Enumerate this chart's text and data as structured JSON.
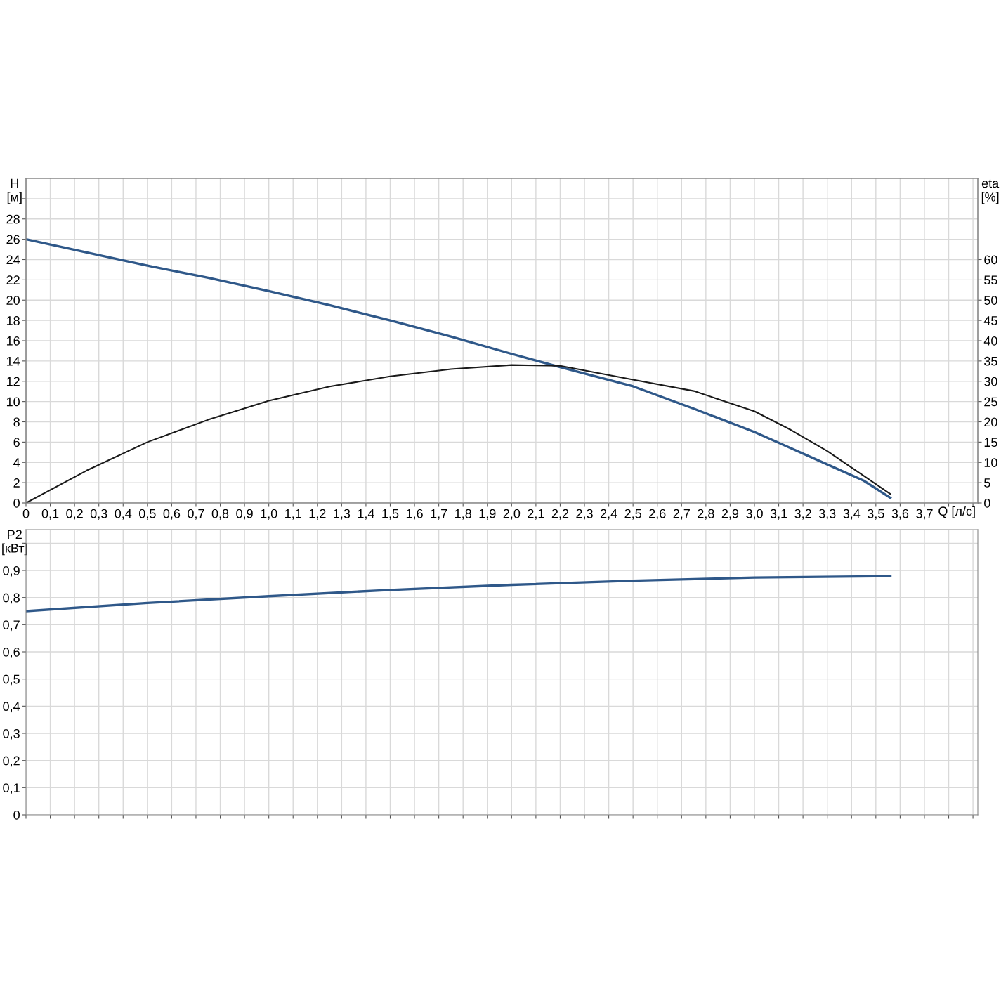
{
  "chart_data": [
    {
      "type": "line",
      "ylabel": "H\n[м]",
      "y2label": "eta\n[%]",
      "xlabel": "Q [л/с]",
      "x": [
        0,
        0.25,
        0.5,
        0.75,
        1.0,
        1.25,
        1.5,
        1.75,
        2.0,
        2.2,
        2.5,
        2.75,
        3.0,
        3.15,
        3.3,
        3.45,
        3.56
      ],
      "series": [
        {
          "color": "#2f5889",
          "values": [
            26,
            24.7,
            23.4,
            22.2,
            20.9,
            19.5,
            18.0,
            16.4,
            14.7,
            13.4,
            11.5,
            9.3,
            7.0,
            5.4,
            3.8,
            2.2,
            0.5
          ]
        },
        {
          "color": "#1a1a1a",
          "axis": "y2",
          "values": [
            0,
            8.0,
            15.0,
            20.5,
            25.2,
            28.7,
            31.2,
            33.0,
            34.0,
            33.8,
            30.4,
            27.6,
            22.6,
            18.0,
            12.8,
            6.7,
            2.2
          ]
        }
      ],
      "xlim": [
        0,
        3.92
      ],
      "xticks": [
        0,
        {
          "value": 0.1,
          "label": "0,1"
        },
        {
          "value": 0.2,
          "label": "0,2"
        },
        {
          "value": 0.3,
          "label": "0,3"
        },
        {
          "value": 0.4,
          "label": "0,4"
        },
        {
          "value": 0.5,
          "label": "0,5"
        },
        {
          "value": 0.6,
          "label": "0,6"
        },
        {
          "value": 0.7,
          "label": "0,7"
        },
        {
          "value": 0.8,
          "label": "0,8"
        },
        {
          "value": 0.9,
          "label": "0,9"
        },
        {
          "value": 1.0,
          "label": "1,0"
        },
        {
          "value": 1.1,
          "label": "1,1"
        },
        {
          "value": 1.2,
          "label": "1,2"
        },
        {
          "value": 1.3,
          "label": "1,3"
        },
        {
          "value": 1.4,
          "label": "1,4"
        },
        {
          "value": 1.5,
          "label": "1,5"
        },
        {
          "value": 1.6,
          "label": "1,6"
        },
        {
          "value": 1.7,
          "label": "1,7"
        },
        {
          "value": 1.8,
          "label": "1,8"
        },
        {
          "value": 1.9,
          "label": "1,9"
        },
        {
          "value": 2.0,
          "label": "2,0"
        },
        {
          "value": 2.1,
          "label": "2,1"
        },
        {
          "value": 2.2,
          "label": "2,2"
        },
        {
          "value": 2.3,
          "label": "2,3"
        },
        {
          "value": 2.4,
          "label": "2,4"
        },
        {
          "value": 2.5,
          "label": "2,5"
        },
        {
          "value": 2.6,
          "label": "2,6"
        },
        {
          "value": 2.7,
          "label": "2,7"
        },
        {
          "value": 2.8,
          "label": "2,8"
        },
        {
          "value": 2.9,
          "label": "2,9"
        },
        {
          "value": 3.0,
          "label": "3,0"
        },
        {
          "value": 3.1,
          "label": "3,1"
        },
        {
          "value": 3.2,
          "label": "3,2"
        },
        {
          "value": 3.3,
          "label": "3,3"
        },
        {
          "value": 3.4,
          "label": "3,4"
        },
        {
          "value": 3.5,
          "label": "3,5"
        },
        {
          "value": 3.6,
          "label": "3,6"
        },
        {
          "value": 3.7,
          "label": "3,7"
        },
        {
          "value": 3.8,
          "label": null
        },
        {
          "value": 3.9,
          "label": null
        }
      ],
      "ylim": [
        0,
        32
      ],
      "yticks": [
        0,
        2,
        4,
        6,
        8,
        10,
        12,
        14,
        16,
        18,
        20,
        22,
        24,
        26,
        28,
        {
          "value": 30,
          "label": null
        }
      ],
      "y2lim": [
        0,
        80
      ],
      "y2ticks": [
        0,
        5,
        10,
        15,
        20,
        25,
        30,
        35,
        40,
        45,
        50,
        55,
        60
      ],
      "grid": true,
      "line_style": "solid",
      "marker": "none"
    },
    {
      "type": "line",
      "ylabel": "P2\n[кВт]",
      "x": [
        0,
        0.5,
        1.0,
        1.5,
        2.0,
        2.5,
        3.0,
        3.56
      ],
      "series": [
        {
          "color": "#2f5889",
          "values": [
            0.75,
            0.78,
            0.805,
            0.828,
            0.847,
            0.862,
            0.874,
            0.879
          ]
        }
      ],
      "xlim": [
        0,
        3.92
      ],
      "xticks": [
        0,
        0.1,
        0.2,
        0.3,
        0.4,
        0.5,
        0.6,
        0.7,
        0.8,
        0.9,
        1.0,
        1.1,
        1.2,
        1.3,
        1.4,
        1.5,
        1.6,
        1.7,
        1.8,
        1.9,
        2.0,
        2.1,
        2.2,
        2.3,
        2.4,
        2.5,
        2.6,
        2.7,
        2.8,
        2.9,
        3.0,
        3.1,
        3.2,
        3.3,
        3.4,
        3.5,
        3.6,
        3.7,
        3.8,
        3.9
      ],
      "ylim": [
        0,
        1.05
      ],
      "yticks": [
        0,
        {
          "value": 0.1,
          "label": "0,1"
        },
        {
          "value": 0.2,
          "label": "0,2"
        },
        {
          "value": 0.3,
          "label": "0,3"
        },
        {
          "value": 0.4,
          "label": "0,4"
        },
        {
          "value": 0.5,
          "label": "0,5"
        },
        {
          "value": 0.6,
          "label": "0,6"
        },
        {
          "value": 0.7,
          "label": "0,7"
        },
        {
          "value": 0.8,
          "label": "0,8"
        },
        {
          "value": 0.9,
          "label": "0,9"
        },
        {
          "value": 1.0,
          "label": null
        }
      ],
      "tick_labels": "y",
      "grid": true,
      "line_style": "solid",
      "marker": "none"
    }
  ]
}
